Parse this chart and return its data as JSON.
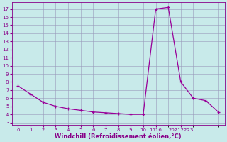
{
  "x_labels": [
    "0",
    "1",
    "2",
    "3",
    "4",
    "5",
    "6",
    "7",
    "8",
    "9",
    "10",
    "",
    "",
    "",
    "",
    "1516",
    "",
    "",
    "",
    "",
    "2021",
    "2223"
  ],
  "x_positions": [
    0,
    1,
    2,
    3,
    4,
    5,
    6,
    7,
    8,
    9,
    10,
    11,
    12,
    13,
    14,
    15,
    16,
    17,
    18,
    19,
    20,
    21
  ],
  "y_values": [
    7.5,
    6.5,
    5.5,
    5.0,
    4.7,
    4.5,
    4.3,
    4.2,
    4.1,
    4.0,
    4.0,
    null,
    null,
    null,
    null,
    17.0,
    17.2,
    null,
    null,
    null,
    8.0,
    5.7
  ],
  "data_x": [
    0,
    1,
    2,
    3,
    4,
    5,
    6,
    7,
    8,
    9,
    10,
    15,
    16,
    20,
    21,
    22,
    23
  ],
  "data_y": [
    7.5,
    6.5,
    5.5,
    5.0,
    4.7,
    4.5,
    4.3,
    4.2,
    4.1,
    4.0,
    4.0,
    17.0,
    17.2,
    8.0,
    6.0,
    5.7,
    4.3
  ],
  "line_color": "#990099",
  "marker": "+",
  "bg_color": "#c8eaea",
  "grid_color": "#9999bb",
  "xlabel": "Windchill (Refroidissement éolien,°C)",
  "yticks": [
    3,
    4,
    5,
    6,
    7,
    8,
    9,
    10,
    11,
    12,
    13,
    14,
    15,
    16,
    17
  ],
  "ylim": [
    2.7,
    17.8
  ],
  "tick_color": "#880088",
  "spine_color": "#880088",
  "tick_labelsize": 5,
  "xlabel_fontsize": 6
}
